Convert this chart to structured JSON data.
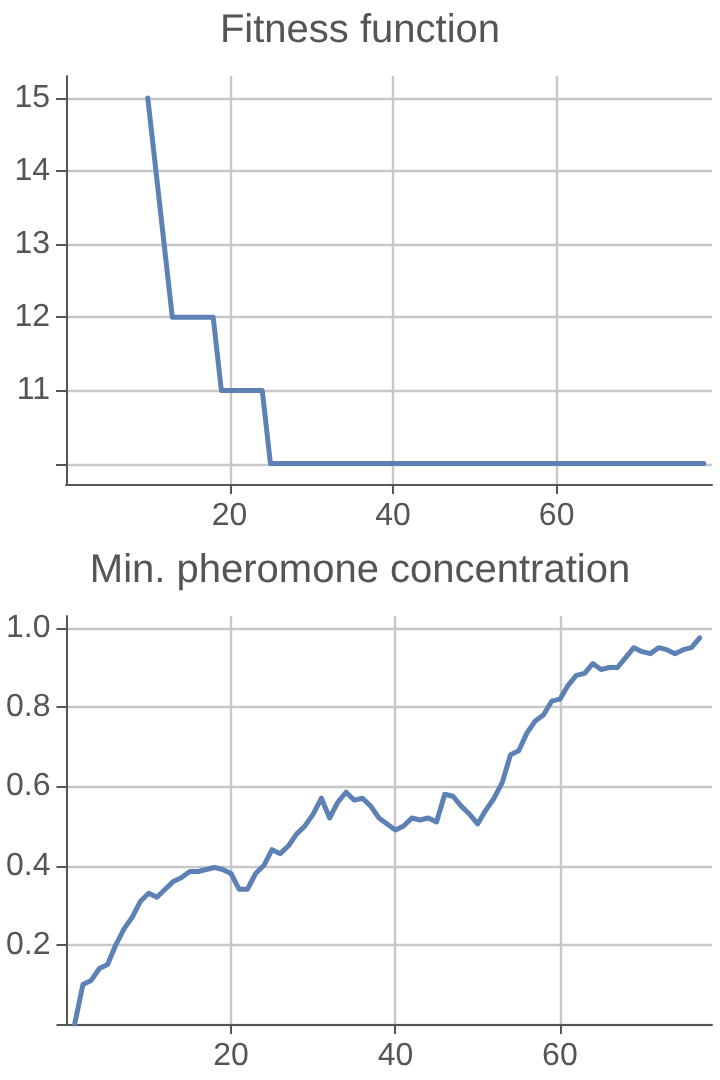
{
  "chart_data": [
    {
      "type": "line",
      "title": "Fitness function",
      "x": [
        10,
        13,
        18,
        19,
        24,
        25,
        78
      ],
      "series": [
        {
          "color": "#5e81b5",
          "values": [
            15,
            12,
            12,
            11,
            11,
            10,
            10
          ]
        }
      ],
      "xlim": [
        0,
        79
      ],
      "xticks": [
        20,
        40,
        60
      ],
      "ylim": [
        9.72,
        15.3
      ],
      "yticks": [
        {
          "value": 10,
          "label": null
        },
        11,
        12,
        13,
        14,
        15
      ],
      "grid": true
    },
    {
      "type": "line",
      "title": "Min. pheromone concentration",
      "x": [
        1,
        2,
        3,
        4,
        5,
        6,
        7,
        8,
        9,
        10,
        11,
        12,
        13,
        14,
        15,
        16,
        17,
        18,
        19,
        20,
        21,
        22,
        23,
        24,
        25,
        26,
        27,
        28,
        29,
        30,
        31,
        32,
        33,
        34,
        35,
        36,
        37,
        38,
        39,
        40,
        41,
        42,
        43,
        44,
        45,
        46,
        47,
        48,
        49,
        50,
        51,
        52,
        53,
        54,
        55,
        56,
        57,
        58,
        59,
        60,
        61,
        62,
        63,
        64,
        65,
        66,
        67,
        68,
        69,
        70,
        71,
        72,
        73,
        74,
        75,
        76,
        77
      ],
      "series": [
        {
          "color": "#5e81b5",
          "values": [
            0,
            0.1,
            0.11,
            0.14,
            0.15,
            0.2,
            0.24,
            0.27,
            0.31,
            0.33,
            0.32,
            0.34,
            0.36,
            0.37,
            0.385,
            0.385,
            0.39,
            0.395,
            0.39,
            0.38,
            0.34,
            0.34,
            0.38,
            0.4,
            0.44,
            0.43,
            0.45,
            0.48,
            0.5,
            0.53,
            0.57,
            0.52,
            0.56,
            0.585,
            0.565,
            0.57,
            0.55,
            0.52,
            0.505,
            0.49,
            0.5,
            0.52,
            0.515,
            0.52,
            0.51,
            0.58,
            0.575,
            0.55,
            0.53,
            0.505,
            0.54,
            0.57,
            0.61,
            0.68,
            0.69,
            0.735,
            0.765,
            0.78,
            0.815,
            0.82,
            0.855,
            0.88,
            0.885,
            0.91,
            0.895,
            0.9,
            0.9,
            0.925,
            0.95,
            0.94,
            0.935,
            0.95,
            0.945,
            0.935,
            0.945,
            0.95,
            0.975
          ]
        }
      ],
      "xlim": [
        0,
        78.5
      ],
      "xticks": [
        20,
        40,
        60
      ],
      "ylim": [
        0,
        1.03
      ],
      "yticks": [
        {
          "value": 0,
          "label": null
        },
        0.2,
        0.4,
        0.6,
        0.8,
        {
          "value": 1,
          "label": "1.0"
        }
      ],
      "grid": true
    }
  ]
}
